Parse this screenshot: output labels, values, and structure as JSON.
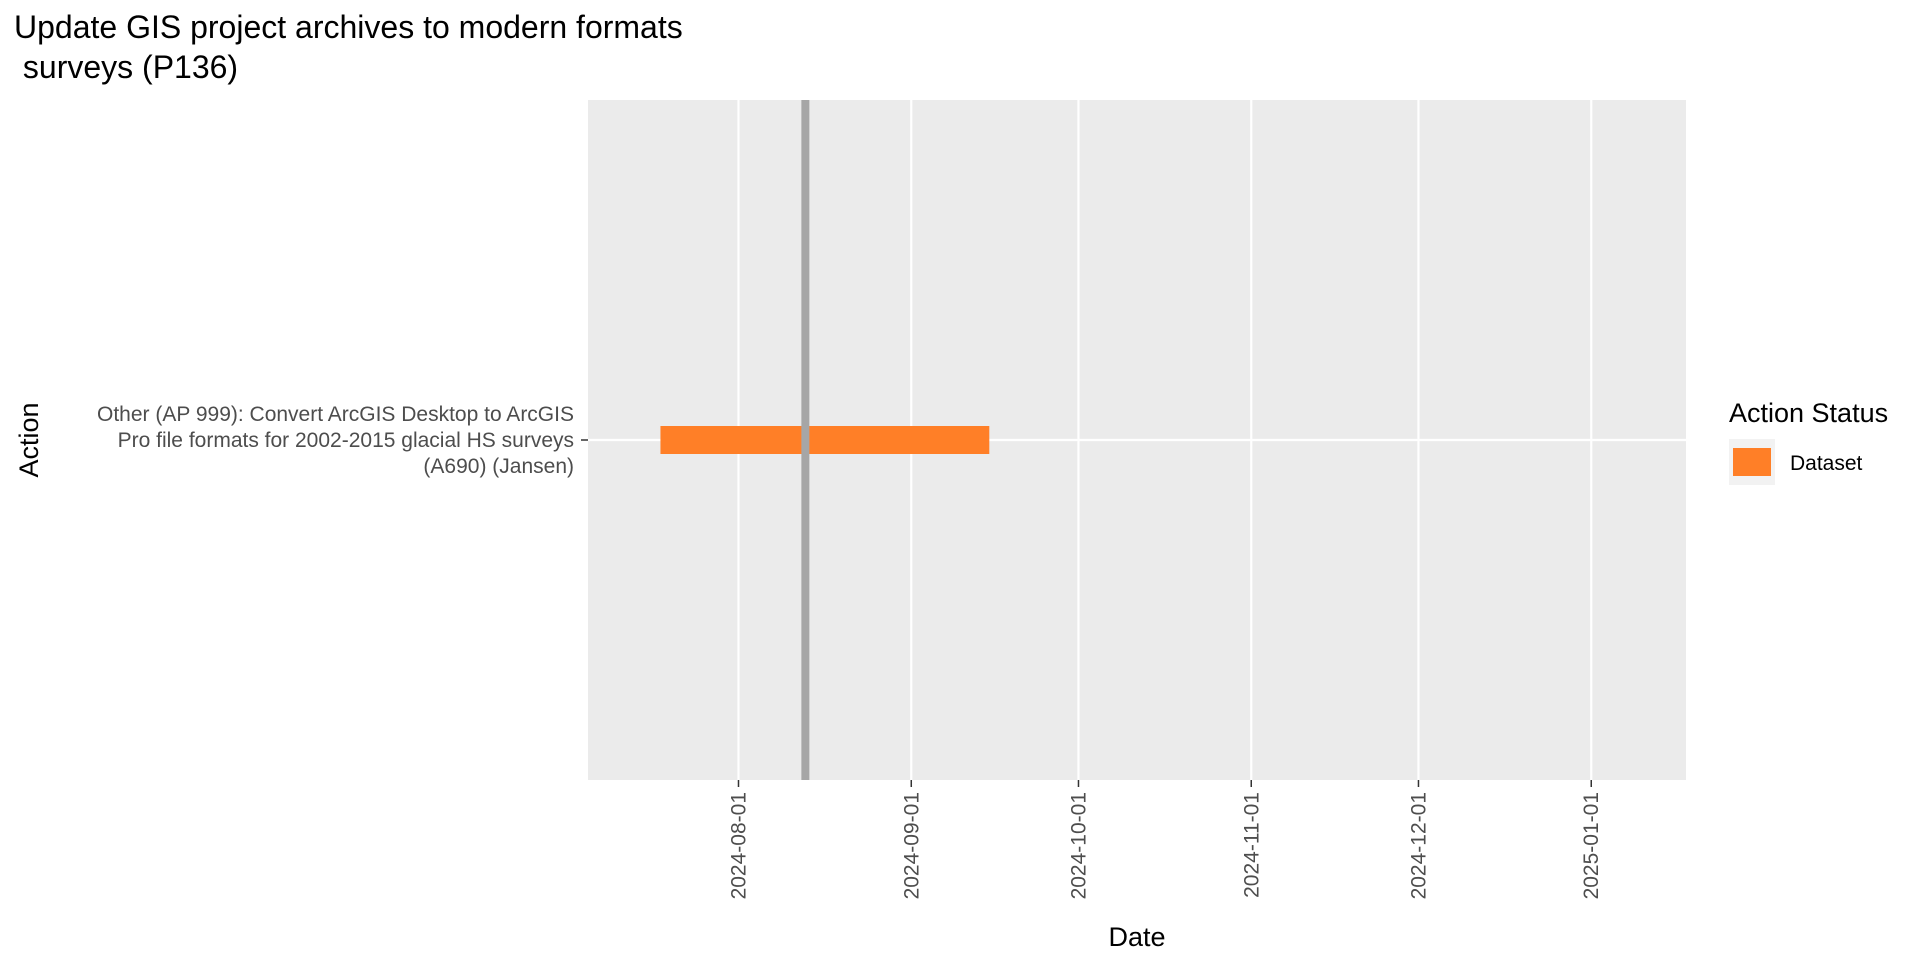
{
  "chart_data": {
    "type": "gantt",
    "title_lines": [
      "Update GIS project archives to modern formats",
      " surveys (P136)"
    ],
    "xlabel": "Date",
    "ylabel": "Action",
    "x_range": [
      "2024-07-05",
      "2025-01-18"
    ],
    "x_ticks": [
      "2024-08-01",
      "2024-09-01",
      "2024-10-01",
      "2024-11-01",
      "2024-12-01",
      "2025-01-01"
    ],
    "today_line": "2024-08-13",
    "categories": [
      {
        "label_lines": [
          "Other (AP 999): Convert ArcGIS Desktop to ArcGIS",
          "Pro file formats for 2002-2015 glacial HS surveys",
          "(A690) (Jansen)"
        ]
      }
    ],
    "tasks": [
      {
        "category_index": 0,
        "start": "2024-07-18",
        "end": "2024-09-15",
        "status": "Dataset",
        "color": "#FF7F27"
      }
    ],
    "legend": {
      "title": "Action Status",
      "position": "right",
      "items": [
        {
          "label": "Dataset",
          "color": "#FF7F27"
        }
      ]
    },
    "colors": {
      "panel_background": "#EBEBEB",
      "grid": "#FFFFFF",
      "today_line": "#A6A6A6",
      "axis_text": "#4D4D4D",
      "title_text": "#000000"
    }
  }
}
